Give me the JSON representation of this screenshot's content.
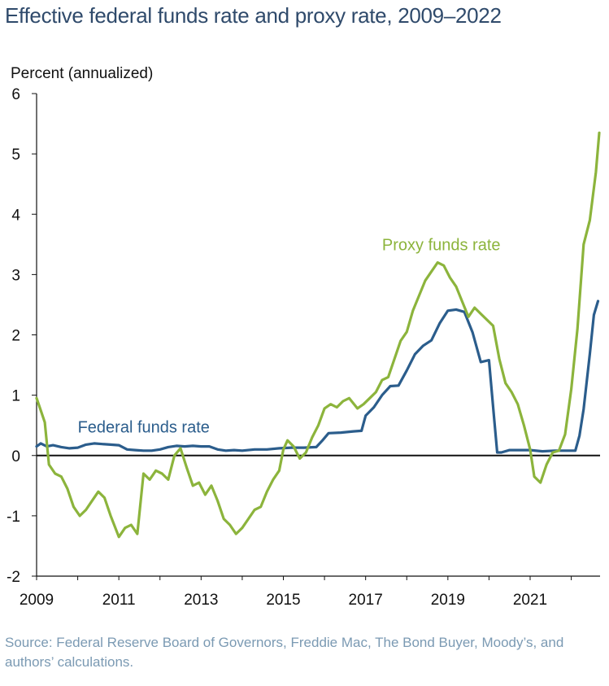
{
  "title": "Effective federal funds rate and proxy rate, 2009–2022",
  "source": "Source: Federal Reserve Board of Governors, Freddie Mac, The Bond Buyer, Moody’s, and authors’ calculations.",
  "colors": {
    "title": "#2f4a6b",
    "fed": "#2b5d8c",
    "proxy": "#8cb43c",
    "source": "#7b9ab3"
  },
  "chart_data": {
    "type": "line",
    "ylabel": "Percent (annualized)",
    "xlim": [
      2009,
      2022.7
    ],
    "ylim": [
      -2,
      6
    ],
    "x_ticks": [
      2009,
      2011,
      2013,
      2015,
      2017,
      2019,
      2021
    ],
    "x_tick_labels": [
      "2009",
      "2011",
      "2013",
      "2015",
      "2017",
      "2019",
      "2021"
    ],
    "y_ticks": [
      -2,
      -1,
      0,
      1,
      2,
      3,
      4,
      5,
      6
    ],
    "y_tick_labels": [
      "-2",
      "-1",
      "0",
      "1",
      "2",
      "3",
      "4",
      "5",
      "6"
    ],
    "zero_line": true,
    "grid": false,
    "series": [
      {
        "name": "Federal funds rate",
        "color": "#2b5d8c",
        "x": [
          2009.0,
          2009.1,
          2009.25,
          2009.4,
          2009.6,
          2009.8,
          2010.0,
          2010.2,
          2010.4,
          2010.6,
          2010.8,
          2011.0,
          2011.2,
          2011.4,
          2011.6,
          2011.8,
          2012.0,
          2012.2,
          2012.4,
          2012.6,
          2012.8,
          2013.0,
          2013.2,
          2013.4,
          2013.6,
          2013.8,
          2014.0,
          2014.3,
          2014.6,
          2014.9,
          2015.2,
          2015.5,
          2015.8,
          2015.95,
          2016.1,
          2016.4,
          2016.7,
          2016.9,
          2017.0,
          2017.2,
          2017.4,
          2017.6,
          2017.8,
          2018.0,
          2018.2,
          2018.4,
          2018.6,
          2018.8,
          2019.0,
          2019.2,
          2019.4,
          2019.6,
          2019.8,
          2020.0,
          2020.12,
          2020.2,
          2020.3,
          2020.5,
          2020.8,
          2021.0,
          2021.3,
          2021.6,
          2021.9,
          2022.1,
          2022.2,
          2022.3,
          2022.45,
          2022.55,
          2022.65
        ],
        "values": [
          0.15,
          0.2,
          0.15,
          0.17,
          0.14,
          0.12,
          0.13,
          0.18,
          0.2,
          0.19,
          0.18,
          0.17,
          0.1,
          0.09,
          0.08,
          0.08,
          0.1,
          0.14,
          0.16,
          0.15,
          0.16,
          0.15,
          0.15,
          0.1,
          0.08,
          0.09,
          0.08,
          0.1,
          0.1,
          0.12,
          0.13,
          0.13,
          0.14,
          0.25,
          0.37,
          0.38,
          0.4,
          0.41,
          0.66,
          0.8,
          1.0,
          1.15,
          1.16,
          1.41,
          1.68,
          1.82,
          1.91,
          2.19,
          2.4,
          2.42,
          2.38,
          2.04,
          1.55,
          1.58,
          0.65,
          0.05,
          0.05,
          0.09,
          0.09,
          0.09,
          0.07,
          0.08,
          0.08,
          0.08,
          0.33,
          0.77,
          1.68,
          2.33,
          2.56
        ]
      },
      {
        "name": "Proxy funds rate",
        "color": "#8cb43c",
        "x": [
          2009.0,
          2009.1,
          2009.2,
          2009.3,
          2009.45,
          2009.6,
          2009.75,
          2009.9,
          2010.05,
          2010.2,
          2010.35,
          2010.5,
          2010.65,
          2010.8,
          2011.0,
          2011.15,
          2011.3,
          2011.45,
          2011.6,
          2011.75,
          2011.9,
          2012.05,
          2012.2,
          2012.35,
          2012.5,
          2012.65,
          2012.8,
          2012.95,
          2013.1,
          2013.25,
          2013.4,
          2013.55,
          2013.7,
          2013.85,
          2014.0,
          2014.15,
          2014.3,
          2014.45,
          2014.6,
          2014.75,
          2014.9,
          2015.0,
          2015.1,
          2015.25,
          2015.4,
          2015.55,
          2015.7,
          2015.85,
          2016.0,
          2016.15,
          2016.3,
          2016.45,
          2016.6,
          2016.8,
          2016.95,
          2017.1,
          2017.25,
          2017.4,
          2017.55,
          2017.7,
          2017.85,
          2018.0,
          2018.15,
          2018.3,
          2018.45,
          2018.6,
          2018.75,
          2018.9,
          2019.05,
          2019.2,
          2019.35,
          2019.5,
          2019.65,
          2019.8,
          2019.95,
          2020.1,
          2020.25,
          2020.4,
          2020.55,
          2020.7,
          2020.85,
          2021.0,
          2021.1,
          2021.25,
          2021.4,
          2021.55,
          2021.7,
          2021.85,
          2022.0,
          2022.15,
          2022.3,
          2022.45,
          2022.6,
          2022.68
        ],
        "values": [
          0.95,
          0.75,
          0.55,
          -0.15,
          -0.3,
          -0.35,
          -0.55,
          -0.85,
          -1.0,
          -0.9,
          -0.75,
          -0.6,
          -0.7,
          -1.0,
          -1.35,
          -1.2,
          -1.15,
          -1.3,
          -0.3,
          -0.4,
          -0.25,
          -0.3,
          -0.4,
          0.0,
          0.12,
          -0.2,
          -0.5,
          -0.45,
          -0.65,
          -0.5,
          -0.75,
          -1.05,
          -1.15,
          -1.3,
          -1.2,
          -1.05,
          -0.9,
          -0.85,
          -0.6,
          -0.4,
          -0.25,
          0.1,
          0.25,
          0.15,
          -0.05,
          0.05,
          0.3,
          0.5,
          0.78,
          0.85,
          0.8,
          0.9,
          0.95,
          0.78,
          0.85,
          0.95,
          1.05,
          1.25,
          1.3,
          1.6,
          1.9,
          2.05,
          2.4,
          2.65,
          2.9,
          3.05,
          3.2,
          3.15,
          2.95,
          2.8,
          2.55,
          2.3,
          2.45,
          2.35,
          2.25,
          2.15,
          1.6,
          1.2,
          1.05,
          0.85,
          0.5,
          0.1,
          -0.35,
          -0.45,
          -0.15,
          0.05,
          0.08,
          0.35,
          1.1,
          2.1,
          3.5,
          3.9,
          4.7,
          5.35
        ]
      }
    ],
    "annotations": [
      {
        "text": "Federal funds rate",
        "series": 0,
        "x": 2010.0,
        "y": 0.38
      },
      {
        "text": "Proxy funds rate",
        "series": 1,
        "x": 2017.4,
        "y": 3.4
      }
    ]
  }
}
